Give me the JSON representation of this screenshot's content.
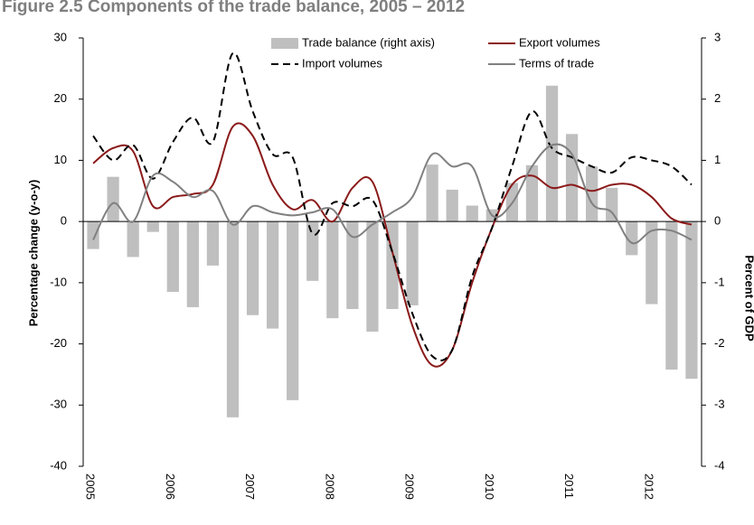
{
  "chart_data": {
    "type": "bar_line",
    "title": "Figure 2.5 Components of the trade balance, 2005 – 2012",
    "ylabel": "Percentage change (y-o-y)",
    "y2label": "Percent of GDP",
    "categories": [
      "2005",
      null,
      null,
      null,
      "2006",
      null,
      null,
      null,
      "2007",
      null,
      null,
      null,
      "2008",
      null,
      null,
      null,
      "2009",
      null,
      null,
      null,
      "2010",
      null,
      null,
      null,
      "2011",
      null,
      null,
      null,
      "2012",
      null,
      null
    ],
    "ylim": [
      -40,
      30
    ],
    "yticks": [
      -40,
      -30,
      -20,
      -10,
      0,
      10,
      20,
      30
    ],
    "y2lim": [
      -4,
      3
    ],
    "y2ticks": [
      -4,
      -3,
      -2,
      -1,
      0,
      1,
      2,
      3
    ],
    "series": [
      {
        "name": "Trade balance (right axis)",
        "kind": "bar",
        "axis": "y2",
        "color": "#bfbfbf",
        "values": [
          -0.45,
          0.73,
          -0.58,
          -0.17,
          -1.15,
          -1.4,
          -0.72,
          -3.2,
          -1.53,
          -1.75,
          -2.92,
          -0.97,
          -1.58,
          -1.43,
          -1.8,
          -1.43,
          -1.37,
          0.93,
          0.52,
          0.26,
          0.2,
          0.63,
          0.92,
          2.22,
          1.43,
          0.9,
          0.55,
          -0.55,
          -1.35,
          -2.42,
          -2.57
        ]
      },
      {
        "name": "Export volumes",
        "kind": "line",
        "color": "#8b1a1a",
        "values": [
          9.5,
          12,
          11.5,
          2.5,
          4,
          4.5,
          6,
          15.5,
          14,
          6,
          2,
          3.5,
          0,
          5.5,
          6.5,
          -5,
          -17,
          -23.5,
          -21,
          -10,
          -1,
          6,
          7.5,
          5.5,
          6,
          5,
          6,
          6,
          4,
          0.5,
          -0.5
        ]
      },
      {
        "name": "Import volumes",
        "kind": "line",
        "dash": true,
        "color": "#000000",
        "values": [
          14,
          10,
          12.5,
          7,
          13,
          17,
          13,
          27.5,
          18,
          11,
          10.5,
          -2,
          3,
          2.5,
          3.5,
          -5,
          -15,
          -22,
          -21,
          -9,
          -1,
          9,
          18,
          12,
          10.5,
          9,
          8,
          10.5,
          10,
          9,
          6
        ]
      },
      {
        "name": "Terms of trade",
        "kind": "line",
        "color": "#808080",
        "values": [
          -3,
          3,
          0,
          7.5,
          6.5,
          4,
          5,
          -0.5,
          2.5,
          1.5,
          1,
          1.5,
          2,
          -2.5,
          -0.5,
          1.5,
          4,
          11,
          9,
          9,
          1,
          3,
          9,
          12.5,
          11,
          3,
          1.5,
          -3.5,
          -1.5,
          -1.5,
          -3
        ]
      }
    ]
  }
}
